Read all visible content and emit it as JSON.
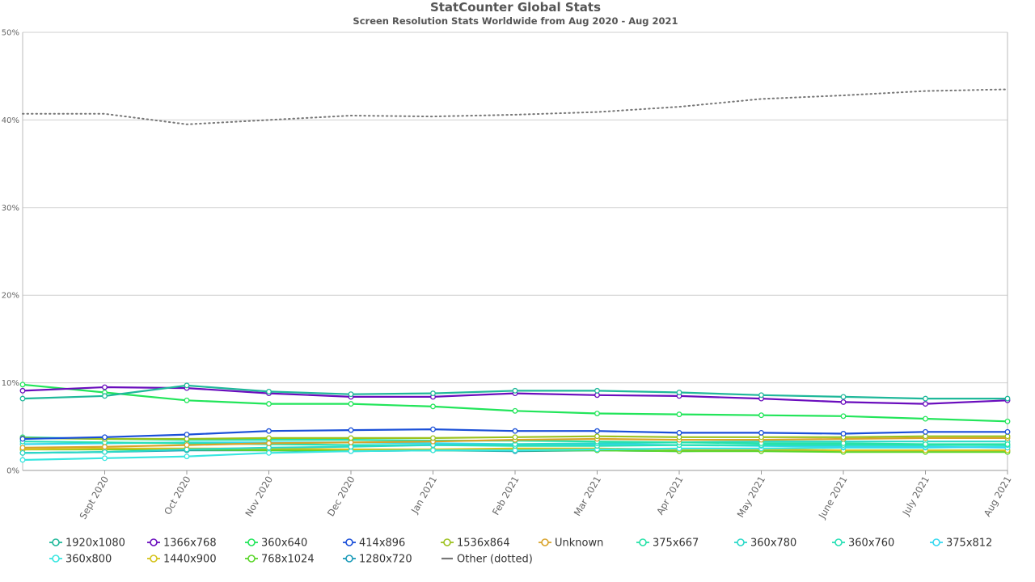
{
  "chart_data": {
    "type": "line",
    "title": "StatCounter Global Stats",
    "subtitle": "Screen Resolution Stats Worldwide from Aug 2020 - Aug 2021",
    "xlabel": "",
    "ylabel": "",
    "x": [
      "Aug 2020",
      "Sept 2020",
      "Oct 2020",
      "Nov 2020",
      "Dec 2020",
      "Jan 2021",
      "Feb 2021",
      "Mar 2021",
      "Apr 2021",
      "May 2021",
      "June 2021",
      "July 2021",
      "Aug 2021"
    ],
    "x_tick_labels": [
      "Sept 2020",
      "Oct 2020",
      "Nov 2020",
      "Dec 2020",
      "Jan 2021",
      "Feb 2021",
      "Mar 2021",
      "Apr 2021",
      "May 2021",
      "June 2021",
      "July 2021",
      "Aug 2021"
    ],
    "ylim": [
      0,
      50
    ],
    "y_ticks": [
      "0%",
      "10%",
      "20%",
      "30%",
      "40%",
      "50%"
    ],
    "grid": true,
    "legend_position": "bottom",
    "series": [
      {
        "name": "1920x1080",
        "color": "#1fb89a",
        "values": [
          8.2,
          8.5,
          9.7,
          9.0,
          8.7,
          8.8,
          9.1,
          9.1,
          8.9,
          8.6,
          8.4,
          8.2,
          8.2
        ]
      },
      {
        "name": "1366x768",
        "color": "#6a0dbd",
        "values": [
          9.1,
          9.5,
          9.4,
          8.8,
          8.4,
          8.4,
          8.8,
          8.6,
          8.5,
          8.2,
          7.8,
          7.6,
          8.0
        ]
      },
      {
        "name": "360x640",
        "color": "#22e55a",
        "values": [
          9.8,
          8.9,
          8.0,
          7.6,
          7.6,
          7.3,
          6.8,
          6.5,
          6.4,
          6.3,
          6.2,
          5.9,
          5.6
        ]
      },
      {
        "name": "414x896",
        "color": "#1a4fd8",
        "values": [
          3.6,
          3.8,
          4.1,
          4.5,
          4.6,
          4.7,
          4.5,
          4.5,
          4.3,
          4.3,
          4.2,
          4.4,
          4.4
        ]
      },
      {
        "name": "1536x864",
        "color": "#9cc11d",
        "values": [
          3.7,
          3.6,
          3.6,
          3.7,
          3.7,
          3.7,
          3.8,
          3.9,
          3.8,
          3.8,
          3.8,
          3.9,
          3.9
        ]
      },
      {
        "name": "Unknown",
        "color": "#d9a32a",
        "values": [
          2.6,
          2.7,
          2.9,
          3.1,
          3.2,
          3.3,
          3.5,
          3.6,
          3.5,
          3.5,
          3.6,
          3.7,
          3.7
        ]
      },
      {
        "name": "375x667",
        "color": "#27e2a8",
        "values": [
          3.8,
          3.6,
          3.5,
          3.5,
          3.5,
          3.4,
          3.4,
          3.3,
          3.2,
          3.1,
          3.1,
          3.0,
          3.0
        ]
      },
      {
        "name": "360x780",
        "color": "#2cd9c8",
        "values": [
          2.0,
          2.1,
          2.4,
          2.6,
          2.7,
          2.9,
          3.0,
          3.1,
          3.2,
          3.3,
          3.3,
          3.3,
          3.3
        ]
      },
      {
        "name": "360x760",
        "color": "#28e0b6",
        "values": [
          3.3,
          3.2,
          3.1,
          3.0,
          2.9,
          2.9,
          2.8,
          2.8,
          2.9,
          2.9,
          2.9,
          2.9,
          2.9
        ]
      },
      {
        "name": "375x812",
        "color": "#35d8f0",
        "values": [
          3.0,
          3.1,
          3.2,
          3.2,
          3.2,
          3.1,
          3.0,
          3.0,
          2.9,
          2.8,
          2.7,
          2.7,
          2.6
        ]
      },
      {
        "name": "360x800",
        "color": "#38e6e0",
        "values": [
          1.2,
          1.4,
          1.6,
          2.0,
          2.2,
          2.3,
          2.3,
          2.4,
          2.5,
          2.5,
          2.6,
          2.6,
          2.7
        ]
      },
      {
        "name": "1440x900",
        "color": "#d4c21a",
        "values": [
          2.4,
          2.5,
          2.5,
          2.5,
          2.4,
          2.4,
          2.5,
          2.5,
          2.4,
          2.4,
          2.3,
          2.3,
          2.3
        ]
      },
      {
        "name": "768x1024",
        "color": "#5ad62a",
        "values": [
          2.4,
          2.4,
          2.4,
          2.3,
          2.3,
          2.3,
          2.3,
          2.3,
          2.2,
          2.2,
          2.1,
          2.1,
          2.1
        ]
      },
      {
        "name": "1280x720",
        "color": "#1a9ab8",
        "values": [
          2.0,
          2.1,
          2.3,
          2.3,
          2.2,
          2.3,
          2.2,
          2.3,
          2.2,
          2.3,
          2.3,
          2.3,
          2.3
        ]
      },
      {
        "name": "Other (dotted)",
        "color": "#777777",
        "dotted": true,
        "values": [
          40.7,
          40.7,
          39.5,
          40.0,
          40.5,
          40.4,
          40.6,
          40.9,
          41.5,
          42.4,
          42.8,
          43.3,
          43.5
        ]
      }
    ]
  }
}
